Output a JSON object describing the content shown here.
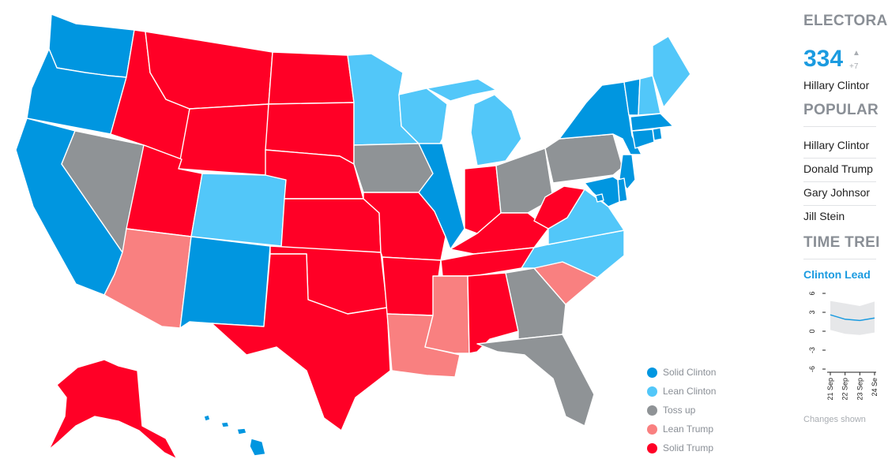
{
  "colors": {
    "solid_clinton": "#0096e0",
    "lean_clinton": "#52c7f9",
    "toss_up": "#8f9396",
    "lean_trump": "#f98080",
    "solid_trump": "#ff0026"
  },
  "legend": [
    {
      "key": "solid_clinton",
      "label": "Solid Clinton"
    },
    {
      "key": "lean_clinton",
      "label": "Lean Clinton"
    },
    {
      "key": "toss_up",
      "label": "Toss up"
    },
    {
      "key": "lean_trump",
      "label": "Lean Trump"
    },
    {
      "key": "solid_trump",
      "label": "Solid Trump"
    }
  ],
  "states": {
    "WA": "solid_clinton",
    "OR": "solid_clinton",
    "CA": "solid_clinton",
    "NV": "toss_up",
    "ID": "solid_trump",
    "MT": "solid_trump",
    "WY": "solid_trump",
    "UT": "solid_trump",
    "AZ": "lean_trump",
    "CO": "lean_clinton",
    "NM": "solid_clinton",
    "ND": "solid_trump",
    "SD": "solid_trump",
    "NE": "solid_trump",
    "KS": "solid_trump",
    "OK": "solid_trump",
    "TX": "solid_trump",
    "MN": "lean_clinton",
    "IA": "toss_up",
    "MO": "solid_trump",
    "AR": "solid_trump",
    "LA": "lean_trump",
    "WI": "lean_clinton",
    "IL": "solid_clinton",
    "MI": "lean_clinton",
    "IN": "solid_trump",
    "OH": "toss_up",
    "KY": "solid_trump",
    "TN": "solid_trump",
    "MS": "lean_trump",
    "AL": "solid_trump",
    "GA": "toss_up",
    "FL": "toss_up",
    "SC": "lean_trump",
    "NC": "lean_clinton",
    "VA": "lean_clinton",
    "WV": "solid_trump",
    "PA": "toss_up",
    "NY": "solid_clinton",
    "VT": "solid_clinton",
    "NH": "lean_clinton",
    "ME": "lean_clinton",
    "MA": "solid_clinton",
    "RI": "solid_clinton",
    "CT": "solid_clinton",
    "NJ": "solid_clinton",
    "DE": "solid_clinton",
    "MD": "solid_clinton",
    "DC": "solid_clinton",
    "AK": "solid_trump",
    "HI": "solid_clinton"
  },
  "panel": {
    "electoral_title": "ELECTORA",
    "electoral_votes": "334",
    "delta_arrow": "▲",
    "delta_value": "+7",
    "electoral_candidate": "Hillary Clintor",
    "popular_title": "POPULAR",
    "popular_rows": [
      "Hillary Clintor",
      "Donald Trump",
      "Gary Johnsor",
      "Jill Stein"
    ],
    "time_trend_title": "TIME TREI",
    "trend_subtitle": "Clinton Lead",
    "changes_note": "Changes shown"
  },
  "chart_data": {
    "type": "line",
    "title": "",
    "ylabel": "",
    "ylim": [
      -6,
      6
    ],
    "yticks": [
      "6",
      "3",
      "0",
      "-3",
      "-6"
    ],
    "xticks": [
      "21 Sep",
      "22 Sep",
      "23 Sep",
      "24 Se"
    ],
    "series": [
      {
        "values": [
          2.6,
          1.9,
          1.7,
          2.1
        ]
      }
    ],
    "band": {
      "upper": [
        4.8,
        4.4,
        4.0,
        4.7
      ],
      "lower": [
        0.2,
        -0.4,
        -0.6,
        -0.2
      ]
    }
  }
}
